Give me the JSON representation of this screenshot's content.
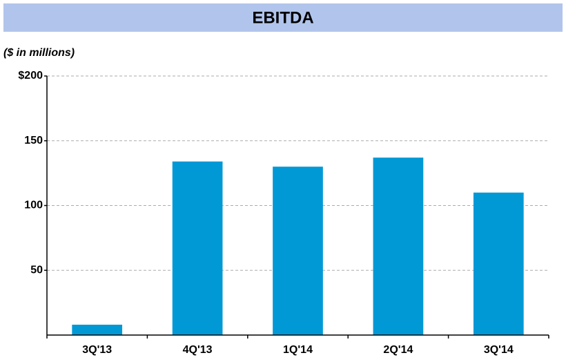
{
  "chart_data": {
    "type": "bar",
    "title": "EBITDA",
    "subtitle": "($ in millions)",
    "categories": [
      "3Q'13",
      "4Q'13",
      "1Q'14",
      "2Q'14",
      "3Q'14"
    ],
    "values": [
      8,
      134,
      130,
      137,
      110
    ],
    "color": "#0099d6",
    "ylim": [
      0,
      200
    ],
    "yticks": [
      {
        "value": 200,
        "label": "$200"
      },
      150,
      100,
      50
    ],
    "grid": true
  }
}
